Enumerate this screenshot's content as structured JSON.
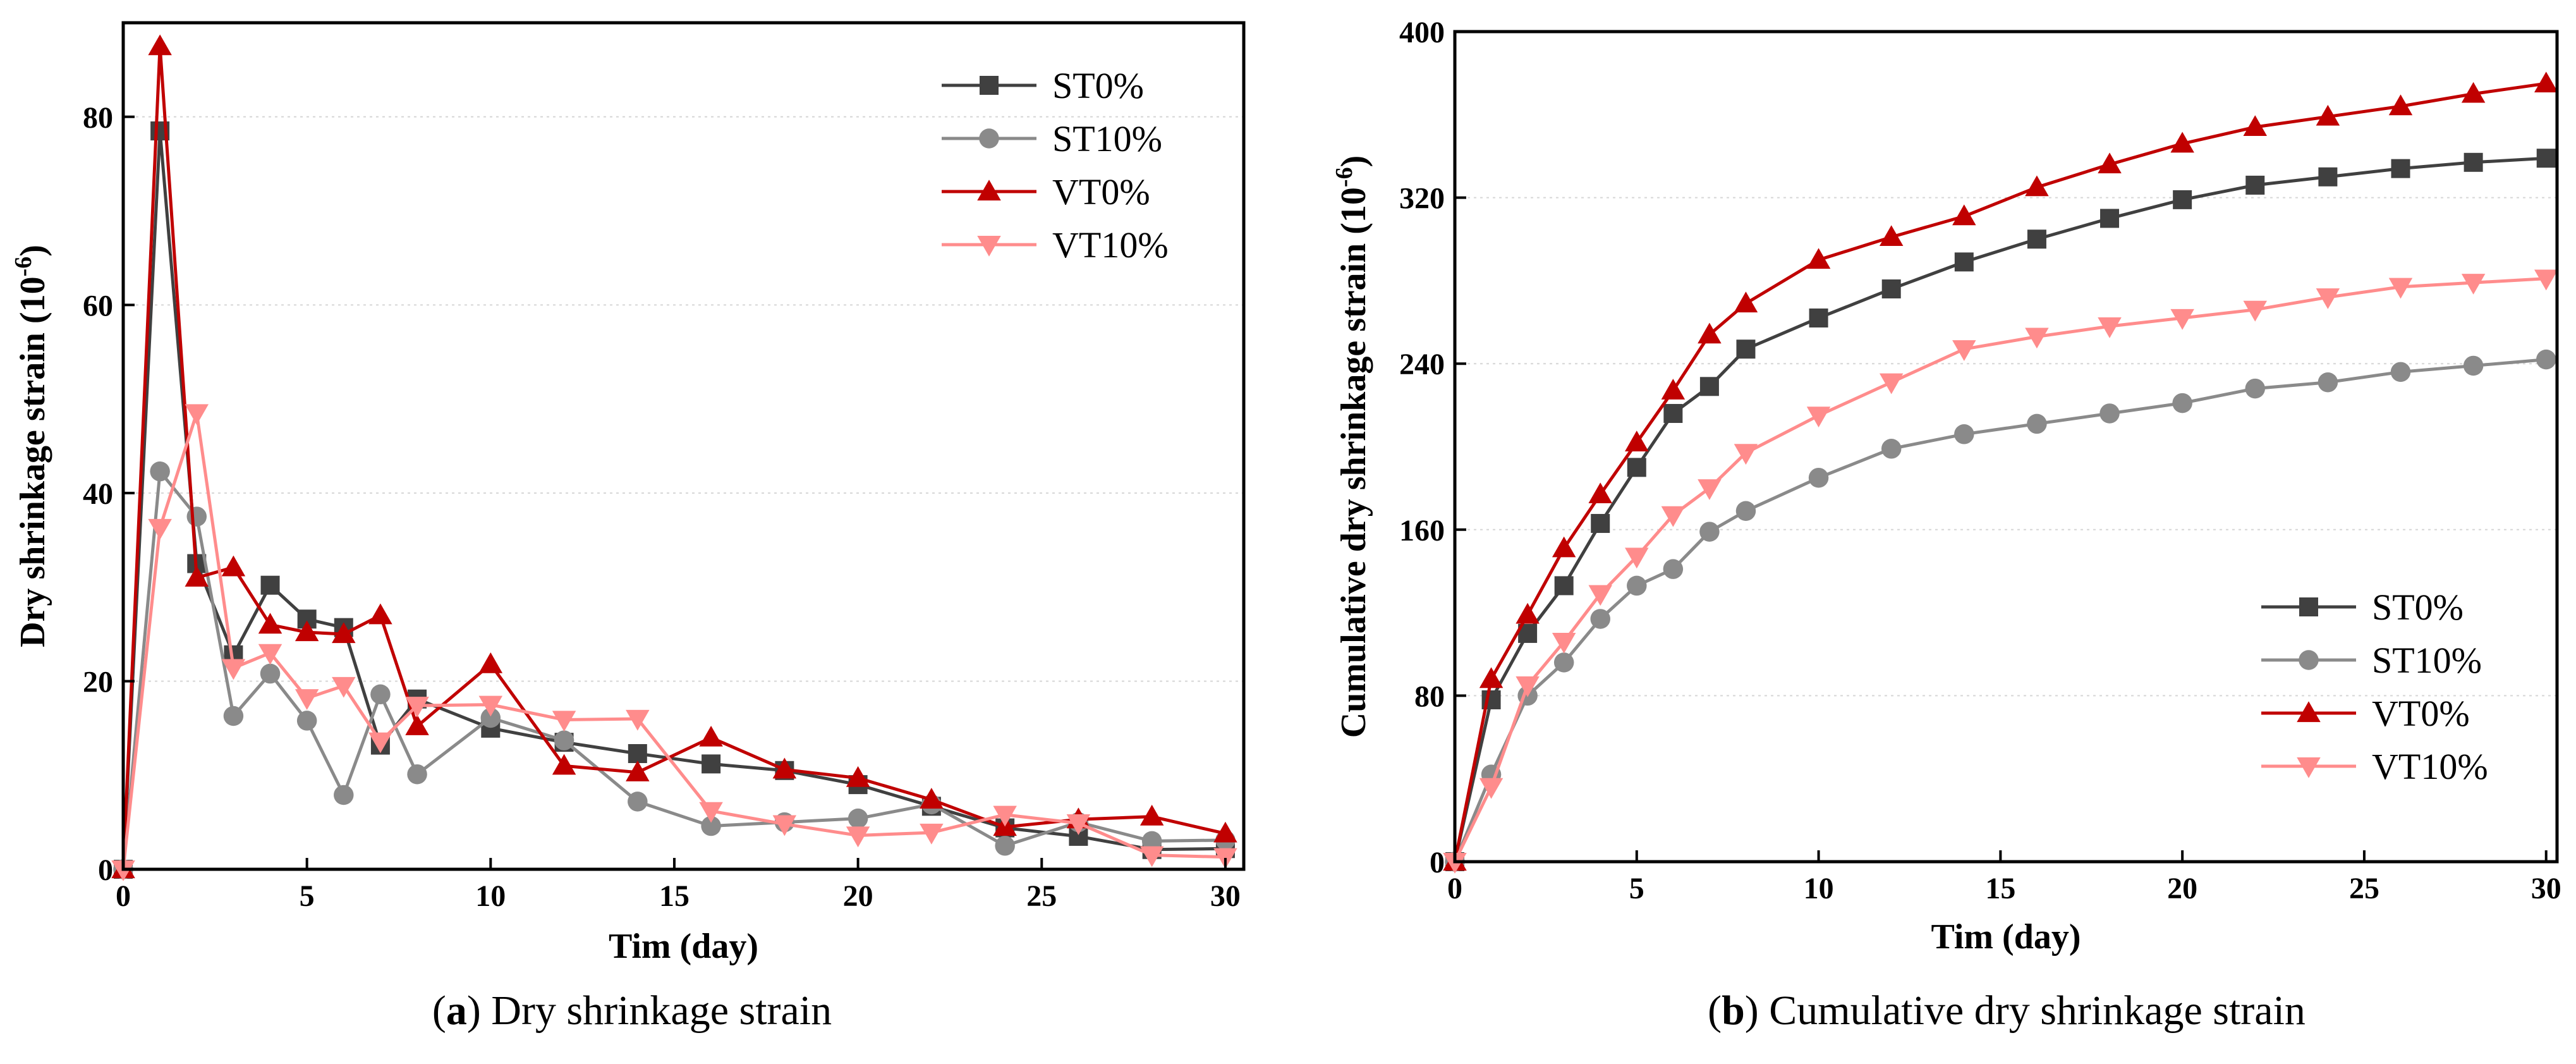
{
  "chart_data": [
    {
      "type": "line",
      "panel": "a",
      "caption_letter": "a",
      "caption_text": "Dry shrinkage strain",
      "xlabel": "Tim (day)",
      "ylabel": "Dry shrinkage strain (10",
      "ylabel_sup": "-6",
      "ylabel_close": ")",
      "xlim": [
        0,
        30.5
      ],
      "ylim": [
        0,
        90
      ],
      "xticks": [
        0,
        5,
        10,
        15,
        20,
        25,
        30
      ],
      "yticks": [
        0,
        20,
        40,
        60,
        80
      ],
      "x": [
        0,
        1,
        2,
        3,
        4,
        5,
        6,
        7,
        8,
        10,
        12,
        14,
        16,
        18,
        20,
        22,
        24,
        26,
        28,
        30
      ],
      "legend_position": "top-right",
      "series": [
        {
          "name": "ST0%",
          "color": "#404040",
          "marker": "square",
          "values": [
            0,
            78.5,
            32.5,
            22.8,
            30.2,
            26.6,
            25.7,
            13.2,
            18.1,
            15.0,
            13.5,
            12.3,
            11.2,
            10.5,
            9.0,
            6.7,
            4.4,
            3.5,
            2.1,
            2.2
          ]
        },
        {
          "name": "ST10%",
          "color": "#8a8a8a",
          "marker": "circle",
          "values": [
            0,
            42.3,
            37.5,
            16.3,
            20.8,
            15.8,
            7.9,
            18.6,
            10.1,
            16.1,
            13.7,
            7.2,
            4.6,
            5.0,
            5.4,
            6.9,
            2.5,
            5.0,
            3.0,
            3.1
          ]
        },
        {
          "name": "VT0%",
          "color": "#c00000",
          "marker": "triangle-up",
          "values": [
            0,
            87.5,
            31.0,
            32.1,
            26.0,
            25.2,
            25.0,
            27.0,
            15.2,
            21.8,
            11.0,
            10.3,
            14.0,
            10.6,
            9.7,
            7.4,
            4.5,
            5.3,
            5.6,
            3.8
          ]
        },
        {
          "name": "VT10%",
          "color": "#ff8c8c",
          "marker": "triangle-down",
          "values": [
            0,
            36.3,
            48.5,
            21.4,
            23.0,
            18.2,
            19.5,
            13.6,
            17.4,
            17.5,
            15.9,
            16.0,
            6.2,
            4.8,
            3.6,
            3.9,
            5.8,
            4.9,
            1.5,
            1.3
          ]
        }
      ]
    },
    {
      "type": "line",
      "panel": "b",
      "caption_letter": "b",
      "caption_text": "Cumulative dry shrinkage strain",
      "xlabel": "Tim (day)",
      "ylabel": "Cumulative dry shrinkage strain (10",
      "ylabel_sup": "-6",
      "ylabel_close": ")",
      "xlim": [
        0,
        30.3
      ],
      "ylim": [
        0,
        400
      ],
      "xticks": [
        0,
        5,
        10,
        15,
        20,
        25,
        30
      ],
      "yticks": [
        0,
        80,
        160,
        240,
        320,
        400
      ],
      "x": [
        0,
        1,
        2,
        3,
        4,
        5,
        6,
        7,
        8,
        10,
        12,
        14,
        16,
        18,
        20,
        22,
        24,
        26,
        28,
        30
      ],
      "legend_position": "bottom-right",
      "series": [
        {
          "name": "ST0%",
          "color": "#404040",
          "marker": "square",
          "values": [
            0,
            78,
            110,
            133,
            163,
            190,
            216,
            229,
            247,
            262,
            276,
            289,
            300,
            310,
            319,
            326,
            330,
            334,
            337,
            339
          ]
        },
        {
          "name": "ST10%",
          "color": "#8a8a8a",
          "marker": "circle",
          "values": [
            0,
            42,
            80,
            96,
            117,
            133,
            141,
            159,
            169,
            185,
            199,
            206,
            211,
            216,
            221,
            228,
            231,
            236,
            239,
            242
          ]
        },
        {
          "name": "VT0%",
          "color": "#c00000",
          "marker": "triangle-up",
          "values": [
            0,
            88,
            119,
            151,
            177,
            202,
            227,
            254,
            269,
            290,
            301,
            311,
            325,
            336,
            346,
            354,
            359,
            364,
            370,
            375
          ]
        },
        {
          "name": "VT10%",
          "color": "#ff8c8c",
          "marker": "triangle-down",
          "values": [
            0,
            36,
            85,
            106,
            129,
            147,
            167,
            180,
            197,
            215,
            231,
            247,
            253,
            258,
            262,
            266,
            272,
            277,
            279,
            281
          ]
        }
      ]
    }
  ]
}
